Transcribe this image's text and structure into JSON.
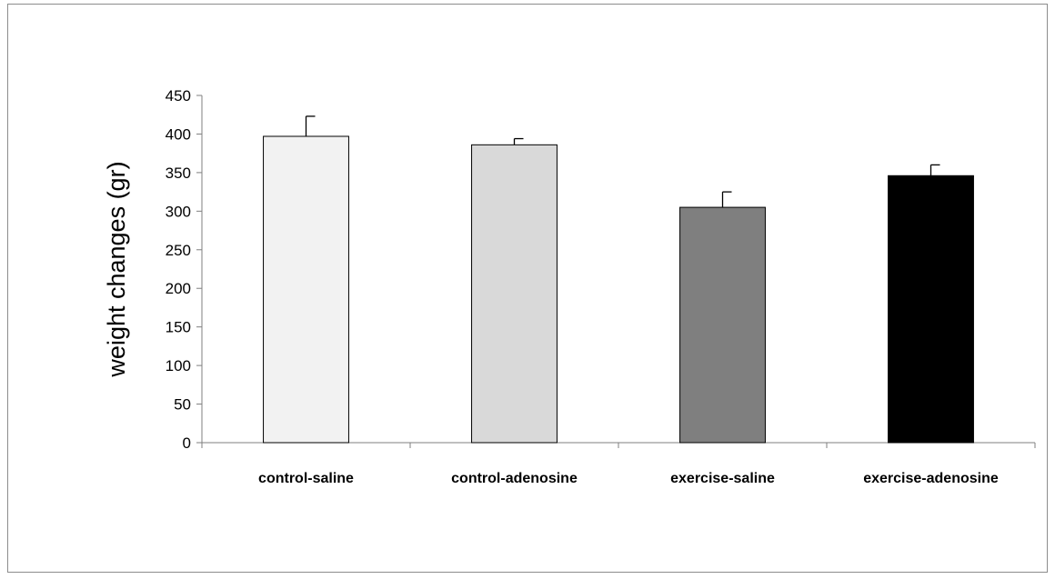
{
  "chart_data": {
    "type": "bar",
    "title": "",
    "xlabel": "",
    "ylabel": "weight changes (gr)",
    "ylim": [
      0,
      450
    ],
    "yticks": [
      0,
      50,
      100,
      150,
      200,
      250,
      300,
      350,
      400,
      450
    ],
    "grid": false,
    "legend": "none",
    "categories": [
      "control-saline",
      "control-adenosine",
      "exercise-saline",
      "exercise-adenosine"
    ],
    "values": [
      397,
      386,
      305,
      346
    ],
    "error_plus": [
      26,
      8,
      20,
      14
    ],
    "bar_colors": [
      "#f2f2f2",
      "#d9d9d9",
      "#7f7f7f",
      "#000000"
    ],
    "bar_edge_color": "#000000",
    "axis_color": "#7f7f7f"
  }
}
